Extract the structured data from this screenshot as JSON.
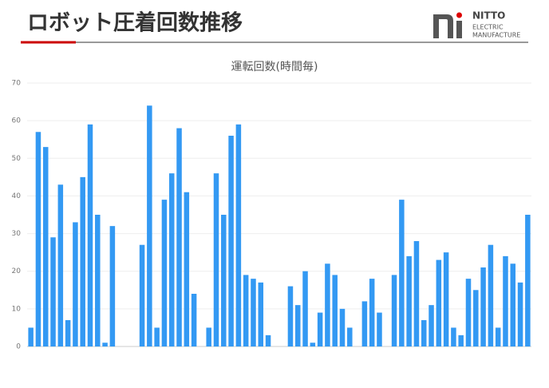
{
  "header": {
    "title": "ロボット圧着回数推移"
  },
  "logo": {
    "name": "NITTO",
    "line1": "ELECTRIC",
    "line2": "MANUFACTURE"
  },
  "chart_data": {
    "type": "bar",
    "title": "運転回数(時間毎)",
    "categories": [
      null,
      null,
      null,
      null,
      null,
      null,
      null,
      null,
      null,
      null,
      null,
      null,
      null,
      null,
      null,
      null,
      null,
      null,
      null,
      null,
      null,
      null,
      null,
      null,
      null,
      null,
      null,
      null,
      null,
      null,
      null,
      null,
      null,
      null,
      null,
      null,
      null,
      null,
      null,
      null,
      null,
      null,
      null,
      null,
      null,
      null,
      null,
      null,
      null,
      null,
      null,
      null,
      null,
      null,
      null,
      null,
      null,
      null,
      null,
      null,
      null,
      null,
      null,
      null,
      null,
      null,
      null,
      null
    ],
    "values": [
      5,
      57,
      53,
      29,
      43,
      7,
      33,
      45,
      59,
      35,
      1,
      32,
      0,
      0,
      0,
      27,
      64,
      5,
      39,
      46,
      58,
      41,
      14,
      0,
      5,
      46,
      35,
      56,
      59,
      19,
      18,
      17,
      3,
      0,
      0,
      16,
      11,
      20,
      1,
      9,
      22,
      19,
      10,
      5,
      0,
      12,
      18,
      9,
      0,
      19,
      39,
      24,
      28,
      7,
      11,
      23,
      25,
      5,
      3,
      18,
      15,
      21,
      27,
      5,
      24,
      22,
      17,
      35
    ],
    "color": "#3399f3",
    "ylim": [
      0,
      70
    ],
    "yticks": [
      0,
      10,
      20,
      30,
      40,
      50,
      60,
      70
    ],
    "grid": true
  }
}
